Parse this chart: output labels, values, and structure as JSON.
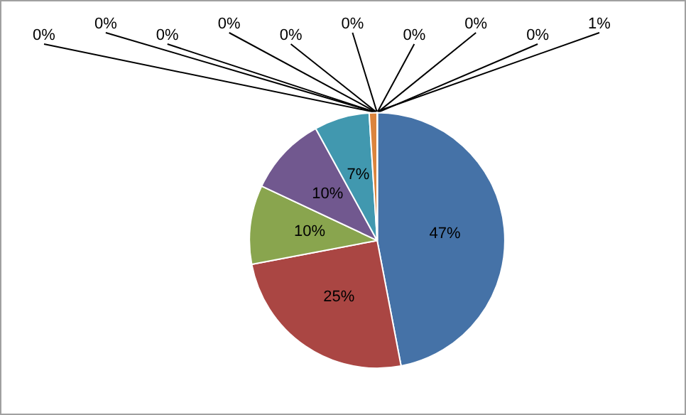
{
  "chart_data": {
    "type": "pie",
    "categories": [
      null,
      null,
      null,
      null,
      null,
      null,
      null,
      null,
      null,
      null,
      null,
      null,
      null,
      null,
      null
    ],
    "values": [
      47,
      25,
      10,
      10,
      7,
      1,
      0,
      0,
      0,
      0,
      0,
      0,
      0,
      0,
      0
    ],
    "value_labels": [
      "47%",
      "25%",
      "10%",
      "10%",
      "7%",
      "1%",
      "0%",
      "0%",
      "0%",
      "0%",
      "0%",
      "0%",
      "0%",
      "0%",
      "0%"
    ],
    "colors": [
      "#4572a7",
      "#aa4643",
      "#89a54e",
      "#71588f",
      "#4198af",
      "#db843d",
      "#93a9cf",
      "#d19392",
      "#b9cd96",
      "#a99bbd",
      "#91c3d5",
      "#f9b590",
      "#5d7db0",
      "#b55552",
      "#7f9a48"
    ]
  }
}
